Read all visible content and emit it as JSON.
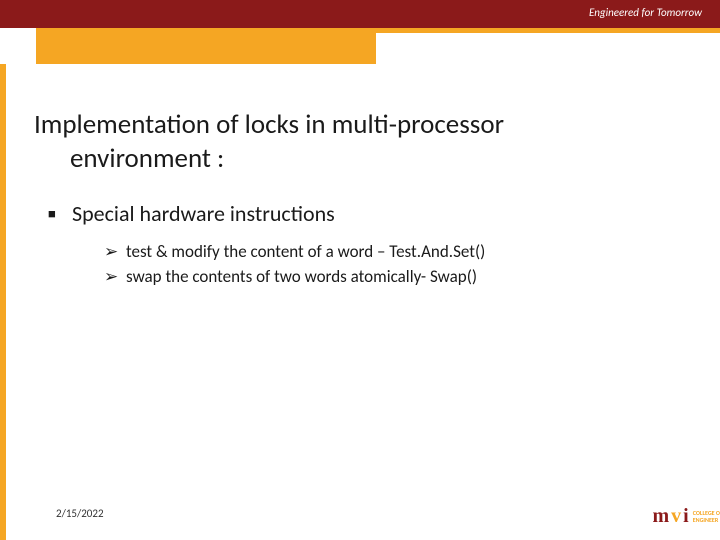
{
  "header": {
    "tagline": "Engineered for Tomorrow",
    "bg_dark": "#8b1a1a",
    "accent_orange": "#f5a623"
  },
  "title": {
    "line1": "Implementation of locks in multi-processor",
    "line2": "environment :"
  },
  "content": {
    "bullet_marker": "▪",
    "arrow_marker": "➢",
    "item1": {
      "text": "Special hardware instructions",
      "sub": [
        "test & modify the content of a word – Test.And.Set()",
        "swap the contents of two words atomically- Swap()"
      ]
    }
  },
  "footer": {
    "date": "2/15/2022"
  },
  "logo": {
    "m": "m",
    "v": "v",
    "i": "i",
    "line1": "COLLEGE O",
    "line2": "ENGINEER"
  }
}
